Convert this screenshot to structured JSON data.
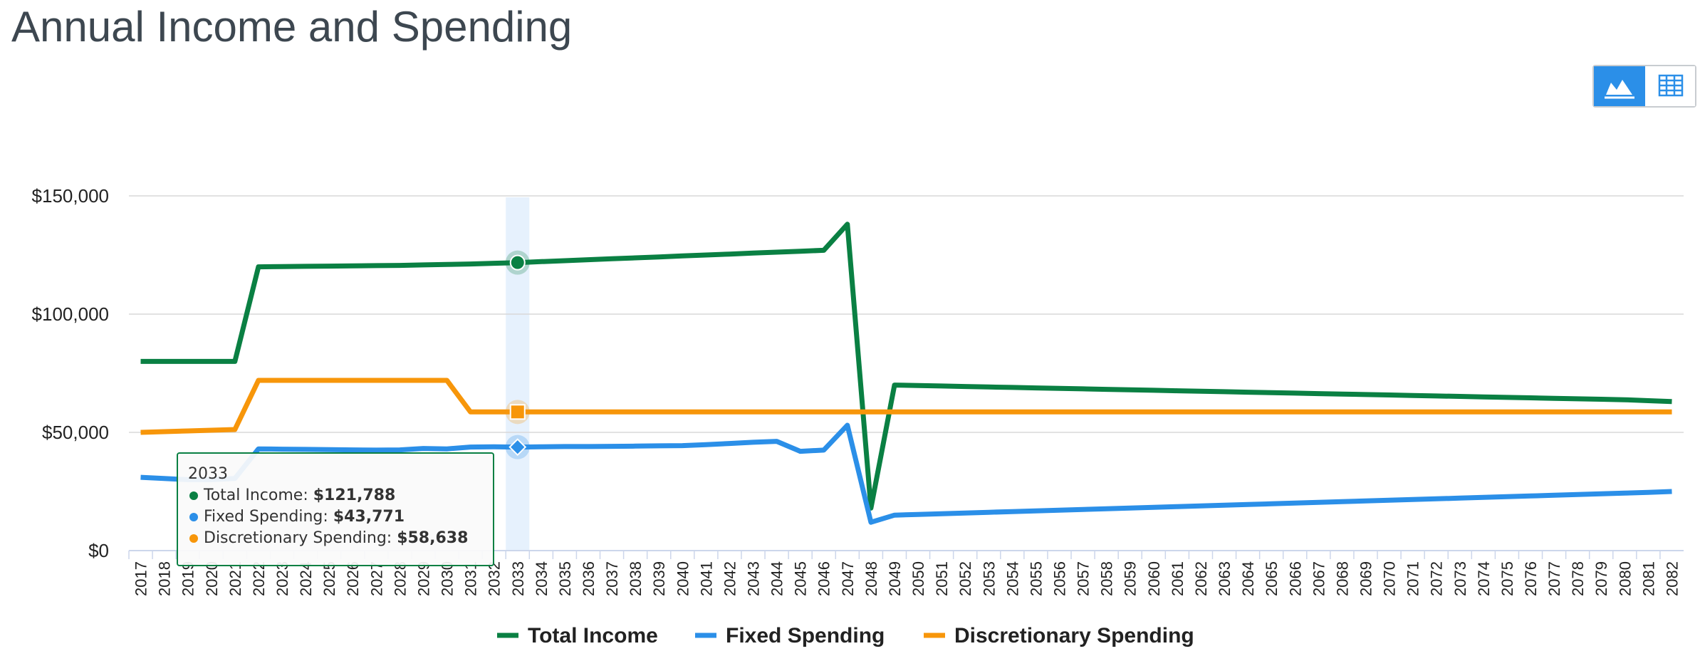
{
  "chart_data": {
    "type": "line",
    "title": "Annual Income and Spending",
    "categories": [
      "2017",
      "2018",
      "2019",
      "2020",
      "2021",
      "2022",
      "2023",
      "2024",
      "2025",
      "2026",
      "2027",
      "2028",
      "2029",
      "2030",
      "2031",
      "2032",
      "2033",
      "2034",
      "2035",
      "2036",
      "2037",
      "2038",
      "2039",
      "2040",
      "2041",
      "2042",
      "2043",
      "2044",
      "2045",
      "2046",
      "2047",
      "2048",
      "2049",
      "2050",
      "2051",
      "2052",
      "2053",
      "2054",
      "2055",
      "2056",
      "2057",
      "2058",
      "2059",
      "2060",
      "2061",
      "2062",
      "2063",
      "2064",
      "2065",
      "2066",
      "2067",
      "2068",
      "2069",
      "2070",
      "2071",
      "2072",
      "2073",
      "2074",
      "2075",
      "2076",
      "2077",
      "2078",
      "2079",
      "2080",
      "2081",
      "2082"
    ],
    "series": [
      {
        "name": "Total Income",
        "color": "#0a8043",
        "values": [
          80000,
          80000,
          80000,
          80000,
          80000,
          120000,
          120100,
          120200,
          120300,
          120400,
          120500,
          120600,
          120800,
          121000,
          121200,
          121500,
          121788,
          122200,
          122600,
          123000,
          123400,
          123800,
          124200,
          124600,
          125000,
          125400,
          125800,
          126200,
          126600,
          127000,
          138000,
          18000,
          70000,
          69800,
          69600,
          69400,
          69200,
          69000,
          68800,
          68600,
          68400,
          68200,
          68000,
          67800,
          67600,
          67400,
          67200,
          67000,
          66800,
          66600,
          66400,
          66200,
          66000,
          65800,
          65600,
          65400,
          65200,
          65000,
          64800,
          64600,
          64400,
          64200,
          64000,
          63800,
          63400,
          63000
        ]
      },
      {
        "name": "Fixed Spending",
        "color": "#2b8fe8",
        "values": [
          31000,
          30500,
          30000,
          30000,
          30500,
          43000,
          42900,
          42800,
          42700,
          42600,
          42500,
          42600,
          43200,
          43000,
          43800,
          43900,
          43771,
          43900,
          44000,
          44000,
          44100,
          44200,
          44300,
          44400,
          44800,
          45300,
          45800,
          46200,
          42000,
          42500,
          53000,
          12000,
          15000,
          15300,
          15600,
          15900,
          16200,
          16500,
          16800,
          17100,
          17400,
          17700,
          18000,
          18300,
          18600,
          18900,
          19200,
          19500,
          19800,
          20100,
          20400,
          20700,
          21000,
          21300,
          21600,
          21900,
          22200,
          22500,
          22800,
          23100,
          23400,
          23700,
          24000,
          24300,
          24600,
          25000
        ]
      },
      {
        "name": "Discretionary Spending",
        "color": "#f7960a",
        "values": [
          50000,
          50300,
          50600,
          50900,
          51200,
          72000,
          72000,
          72000,
          72000,
          72000,
          72000,
          72000,
          72000,
          72000,
          58638,
          58638,
          58638,
          58638,
          58638,
          58638,
          58638,
          58638,
          58638,
          58638,
          58638,
          58638,
          58638,
          58638,
          58638,
          58638,
          58638,
          58638,
          58638,
          58638,
          58638,
          58638,
          58638,
          58638,
          58638,
          58638,
          58638,
          58638,
          58638,
          58638,
          58638,
          58638,
          58638,
          58638,
          58638,
          58638,
          58638,
          58638,
          58638,
          58638,
          58638,
          58638,
          58638,
          58638,
          58638,
          58638,
          58638,
          58638,
          58638,
          58638,
          58638,
          58638
        ]
      }
    ],
    "ylim": [
      0,
      150000
    ],
    "yticks": [
      {
        "value": 0,
        "label": "$0"
      },
      {
        "value": 50000,
        "label": "$50,000"
      },
      {
        "value": 100000,
        "label": "$100,000"
      },
      {
        "value": 150000,
        "label": "$150,000"
      }
    ],
    "grid": true,
    "tooltip": {
      "category": "2033",
      "value_labels": [
        "$121,788",
        "$43,771",
        "$58,638"
      ]
    }
  }
}
